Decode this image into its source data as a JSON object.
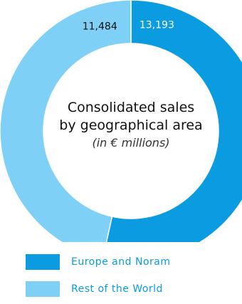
{
  "chart_data": {
    "type": "pie",
    "title_line1": "Consolidated sales",
    "title_line2": "by geographical area",
    "subtitle": "(in € millions)",
    "series": [
      {
        "name": "Europe and Noram",
        "value": 13193,
        "value_label": "13,193",
        "color": "#0a9be1",
        "label_color": "#ffffff"
      },
      {
        "name": "Rest of the World",
        "value": 11484,
        "value_label": "11,484",
        "color": "#7fd0f6",
        "label_color": "#111111"
      }
    ],
    "legend_position": "bottom",
    "legend_text_color": "#0a9be1"
  }
}
